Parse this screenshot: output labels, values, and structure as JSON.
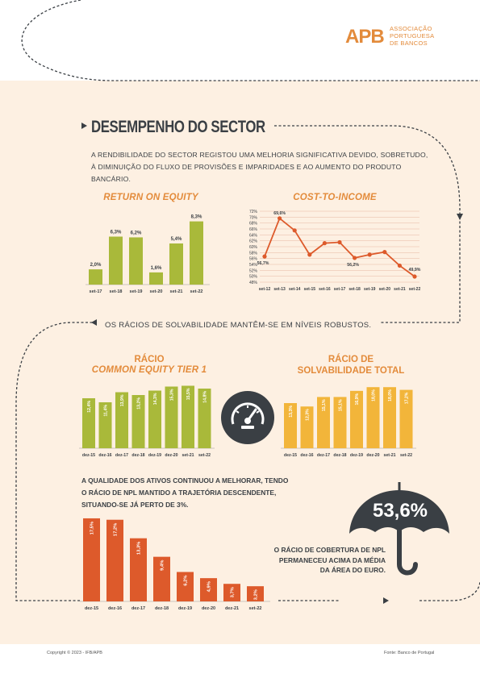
{
  "logo": {
    "mark": "APB",
    "lines": [
      "ASSOCIAÇÃO",
      "PORTUGUESA",
      "DE BANCOS"
    ]
  },
  "section_title": "DESEMPENHO DO SECTOR",
  "intro": "A RENDIBILIDADE DO SECTOR REGISTOU UMA MELHORIA SIGNIFICATIVA DEVIDO, SOBRETUDO, À DIMINUIÇÃO DO FLUXO DE PROVISÕES E IMPARIDADES E AO AUMENTO DO PRODUTO BANCÁRIO.",
  "banner": "OS RÁCIOS DE SOLVABILIDADE MANTÊM-SE EM NÍVEIS ROBUSTOS.",
  "npl_text": "A QUALIDADE DOS ATIVOS CONTINUOU A MELHORAR, TENDO O RÁCIO DE NPL MANTIDO A TRAJETÓRIA DESCENDENTE, SITUANDO-SE JÁ PERTO DE 3%.",
  "coverage": {
    "value": "53,6%",
    "text": "O RÁCIO DE COBERTURA DE NPL PERMANECEU ACIMA DA MÉDIA DA ÁREA DO EURO."
  },
  "footer": {
    "copyright": "Copyright © 2023 - IFB/APB",
    "source": "Fonte: Banco de Portugal"
  },
  "colors": {
    "orange_accent": "#e38b3b",
    "green": "#a9b93a",
    "yellow": "#f2b53a",
    "red": "#dd5a2b",
    "dark": "#3a3f44",
    "background": "#fdf0e2"
  },
  "icons": {
    "gauge": "speedometer-icon",
    "umbrella": "umbrella-icon"
  },
  "chart_data": [
    {
      "id": "roe",
      "type": "bar",
      "title": "RETURN ON EQUITY",
      "categories": [
        "set-17",
        "set-18",
        "set-19",
        "set-20",
        "set-21",
        "set-22"
      ],
      "values": [
        2.0,
        6.3,
        6.2,
        1.6,
        5.4,
        8.3
      ],
      "labels": [
        "2,0%",
        "6,3%",
        "6,2%",
        "1,6%",
        "5,4%",
        "8,3%"
      ],
      "ylim": [
        0,
        9
      ],
      "color": "#a9b93a"
    },
    {
      "id": "cti",
      "type": "line",
      "title": "COST-TO-INCOME",
      "categories": [
        "set-12",
        "set-13",
        "set-14",
        "set-15",
        "set-16",
        "set-17",
        "set-18",
        "set-19",
        "set-20",
        "set-21",
        "set-22"
      ],
      "values": [
        56.7,
        69.6,
        65.5,
        57.3,
        61.2,
        61.5,
        56.2,
        57.3,
        58.2,
        53.6,
        49.9
      ],
      "point_labels": {
        "0": "56,7%",
        "1": "69,6%",
        "6": "56,2%",
        "10": "49,9%"
      },
      "yticks": [
        "48%",
        "50%",
        "52%",
        "54%",
        "56%",
        "58%",
        "60%",
        "62%",
        "64%",
        "66%",
        "68%",
        "70%",
        "72%"
      ],
      "ylim": [
        48,
        72
      ],
      "grid": true,
      "color": "#dd5a2b"
    },
    {
      "id": "cet1",
      "type": "bar",
      "title": [
        "RÁCIO",
        "COMMON EQUITY TIER 1"
      ],
      "categories": [
        "dez-15",
        "dez-16",
        "dez-17",
        "dez-18",
        "dez-19",
        "dez-20",
        "set-21",
        "set-22"
      ],
      "values": [
        12.4,
        11.4,
        13.9,
        13.2,
        14.3,
        15.3,
        15.5,
        14.8
      ],
      "labels": [
        "12,4%",
        "11,4%",
        "13,9%",
        "13,2%",
        "14,3%",
        "15,3%",
        "15,5%",
        "14,8%"
      ],
      "ylim": [
        0,
        16
      ],
      "color": "#a9b93a"
    },
    {
      "id": "total_capital",
      "type": "bar",
      "title": [
        "RÁCIO DE",
        "SOLVABILIDADE TOTAL"
      ],
      "categories": [
        "dez-15",
        "dez-16",
        "dez-17",
        "dez-18",
        "dez-19",
        "dez-20",
        "set-21",
        "set-22"
      ],
      "values": [
        13.3,
        12.3,
        15.1,
        15.1,
        16.9,
        18.0,
        18.0,
        17.2
      ],
      "labels": [
        "13,3%",
        "12,3%",
        "15,1%",
        "15,1%",
        "16,9%",
        "18,0%",
        "18,0%",
        "17,2%"
      ],
      "ylim": [
        0,
        19
      ],
      "color": "#f2b53a"
    },
    {
      "id": "npl",
      "type": "bar",
      "title": "",
      "categories": [
        "dez-15",
        "dez-16",
        "dez-17",
        "dez-18",
        "dez-19",
        "dez-20",
        "dez-21",
        "set-22"
      ],
      "values": [
        17.5,
        17.2,
        13.3,
        9.4,
        6.2,
        4.9,
        3.7,
        3.2
      ],
      "labels": [
        "17,5%",
        "17,2%",
        "13,3%",
        "9,4%",
        "6,2%",
        "4,9%",
        "3,7%",
        "3,2%"
      ],
      "ylim": [
        0,
        18
      ],
      "color": "#dd5a2b"
    }
  ]
}
